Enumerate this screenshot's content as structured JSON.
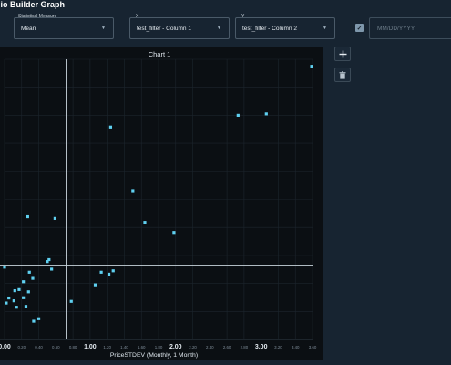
{
  "header": {
    "title": "lio Builder Graph"
  },
  "controls": {
    "measure": {
      "label": "Statistical Measure",
      "value": "Mean"
    },
    "x": {
      "label": "X",
      "value": "test_filter - Column 1"
    },
    "y": {
      "label": "Y",
      "value": "test_filter - Column 2"
    },
    "date": {
      "placeholder": "MM/DD/YYYY"
    },
    "checkbox": {
      "checked": true
    }
  },
  "side_buttons": {
    "add_icon": "plus-icon",
    "delete_icon": "trash-icon"
  },
  "chart_data": {
    "type": "scatter",
    "title": "Chart 1",
    "xlabel": "PriceSTDEV  (Monthly, 1 Month)",
    "ylabel": "",
    "xlim": [
      0.0,
      3.6
    ],
    "x_ticks": [
      {
        "v": 0.0,
        "label": "0.00",
        "major": true
      },
      {
        "v": 0.2,
        "label": "0.20",
        "major": false
      },
      {
        "v": 0.4,
        "label": "0.40",
        "major": false
      },
      {
        "v": 0.6,
        "label": "0.60",
        "major": false
      },
      {
        "v": 0.8,
        "label": "0.80",
        "major": false
      },
      {
        "v": 1.0,
        "label": "1.00",
        "major": true
      },
      {
        "v": 1.2,
        "label": "1.20",
        "major": false
      },
      {
        "v": 1.4,
        "label": "1.40",
        "major": false
      },
      {
        "v": 1.6,
        "label": "1.60",
        "major": false
      },
      {
        "v": 1.8,
        "label": "1.80",
        "major": false
      },
      {
        "v": 2.0,
        "label": "2.00",
        "major": true
      },
      {
        "v": 2.2,
        "label": "2.20",
        "major": false
      },
      {
        "v": 2.4,
        "label": "2.40",
        "major": false
      },
      {
        "v": 2.6,
        "label": "2.60",
        "major": false
      },
      {
        "v": 2.8,
        "label": "2.80",
        "major": false
      },
      {
        "v": 3.0,
        "label": "3.00",
        "major": true
      },
      {
        "v": 3.2,
        "label": "3.20",
        "major": false
      },
      {
        "v": 3.4,
        "label": "3.40",
        "major": false
      },
      {
        "v": 3.6,
        "label": "3.60",
        "major": false
      }
    ],
    "ylim": [
      0,
      100
    ],
    "grid": true,
    "reference_lines": {
      "x": 0.72,
      "y": 26.5
    },
    "points": [
      {
        "x": 3.59,
        "y": 97.5
      },
      {
        "x": 3.06,
        "y": 80.5
      },
      {
        "x": 2.73,
        "y": 80.0
      },
      {
        "x": 1.24,
        "y": 75.8
      },
      {
        "x": 1.5,
        "y": 53.1
      },
      {
        "x": 1.64,
        "y": 41.8
      },
      {
        "x": 1.98,
        "y": 38.2
      },
      {
        "x": 0.27,
        "y": 43.8
      },
      {
        "x": 0.59,
        "y": 43.2
      },
      {
        "x": 0.52,
        "y": 28.5
      },
      {
        "x": 0.5,
        "y": 27.8
      },
      {
        "x": 0.55,
        "y": 25.1
      },
      {
        "x": 0.29,
        "y": 24.0
      },
      {
        "x": 0.0,
        "y": 25.8
      },
      {
        "x": 0.33,
        "y": 21.8
      },
      {
        "x": 1.13,
        "y": 24.0
      },
      {
        "x": 1.22,
        "y": 23.3
      },
      {
        "x": 1.27,
        "y": 24.5
      },
      {
        "x": 1.06,
        "y": 19.5
      },
      {
        "x": 0.22,
        "y": 20.6
      },
      {
        "x": 0.17,
        "y": 17.8
      },
      {
        "x": 0.28,
        "y": 17.0
      },
      {
        "x": 0.12,
        "y": 17.4
      },
      {
        "x": 0.22,
        "y": 14.9
      },
      {
        "x": 0.11,
        "y": 13.8
      },
      {
        "x": 0.05,
        "y": 14.8
      },
      {
        "x": 0.02,
        "y": 13.0
      },
      {
        "x": 0.14,
        "y": 11.5
      },
      {
        "x": 0.25,
        "y": 11.8
      },
      {
        "x": 0.78,
        "y": 13.6
      },
      {
        "x": 0.4,
        "y": 7.4
      },
      {
        "x": 0.34,
        "y": 6.5
      }
    ]
  }
}
